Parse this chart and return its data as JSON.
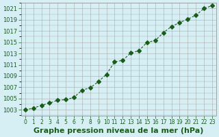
{
  "x": [
    0,
    1,
    2,
    3,
    4,
    5,
    6,
    7,
    8,
    9,
    10,
    11,
    12,
    13,
    14,
    15,
    16,
    17,
    18,
    19,
    20,
    21,
    22,
    23
  ],
  "y": [
    1003.0,
    1003.3,
    1003.8,
    1004.2,
    1004.7,
    1004.8,
    1005.2,
    1006.5,
    1006.9,
    1008.0,
    1009.3,
    1011.5,
    1011.8,
    1013.1,
    1013.5,
    1015.0,
    1015.3,
    1016.7,
    1017.8,
    1018.5,
    1019.1,
    1019.8,
    1021.0,
    1021.5
  ],
  "xlim": [
    -0.5,
    23.5
  ],
  "ylim": [
    1002,
    1022
  ],
  "yticks": [
    1003,
    1005,
    1007,
    1009,
    1011,
    1013,
    1015,
    1017,
    1019,
    1021
  ],
  "xticks": [
    0,
    1,
    2,
    3,
    4,
    5,
    6,
    7,
    8,
    9,
    10,
    11,
    12,
    13,
    14,
    15,
    16,
    17,
    18,
    19,
    20,
    21,
    22,
    23
  ],
  "line_color": "#1a5c1a",
  "marker": "D",
  "marker_size": 3,
  "bg_color": "#d6eff5",
  "grid_color": "#aaaaaa",
  "xlabel": "Graphe pression niveau de la mer (hPa)",
  "xlabel_color": "#1a5c1a",
  "tick_color": "#1a5c1a",
  "label_fontsize": 7,
  "xlabel_fontsize": 8
}
